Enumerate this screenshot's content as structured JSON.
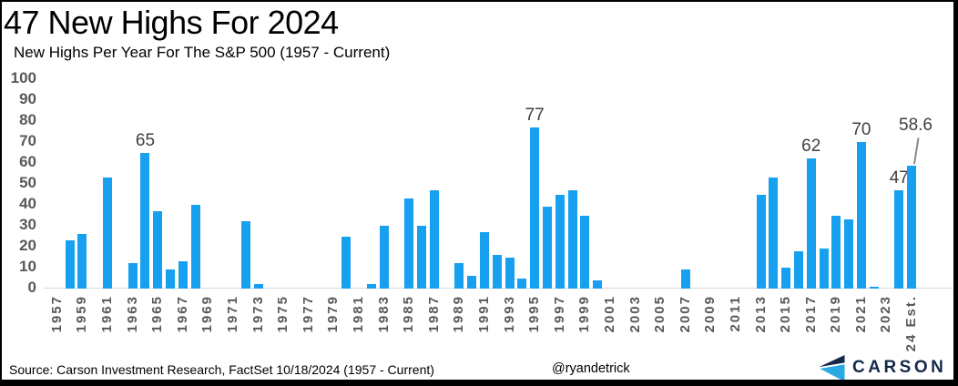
{
  "title": "47 New Highs For 2024",
  "subtitle": "New Highs Per Year For The S&P 500 (1957 - Current)",
  "footer": {
    "source": "Source: Carson Investment Research, FactSet 10/18/2024 (1957 - Current)",
    "handle": "@ryandetrick",
    "brand": "CARSON"
  },
  "colors": {
    "bar": "#18a0f0",
    "axis_text": "#595959",
    "value_label": "#404040",
    "brand_navy": "#13294b",
    "brand_blue": "#2aaae2",
    "baseline": "#d9d9d9"
  },
  "chart_data": {
    "type": "bar",
    "title": "47 New Highs For 2024",
    "subtitle": "New Highs Per Year For The S&P 500 (1957 - Current)",
    "xlabel": "",
    "ylabel": "",
    "ylim": [
      0,
      100
    ],
    "ytick_interval": 10,
    "grid": false,
    "legend": "none",
    "categories": [
      "1957",
      "1958",
      "1959",
      "1960",
      "1961",
      "1962",
      "1963",
      "1964",
      "1965",
      "1966",
      "1967",
      "1968",
      "1969",
      "1970",
      "1971",
      "1972",
      "1973",
      "1974",
      "1975",
      "1976",
      "1977",
      "1978",
      "1979",
      "1980",
      "1981",
      "1982",
      "1983",
      "1984",
      "1985",
      "1986",
      "1987",
      "1988",
      "1989",
      "1990",
      "1991",
      "1992",
      "1993",
      "1994",
      "1995",
      "1996",
      "1997",
      "1998",
      "1999",
      "2000",
      "2001",
      "2002",
      "2003",
      "2004",
      "2005",
      "2006",
      "2007",
      "2008",
      "2009",
      "2010",
      "2011",
      "2012",
      "2013",
      "2014",
      "2015",
      "2016",
      "2017",
      "2018",
      "2019",
      "2020",
      "2021",
      "2022",
      "2023",
      "2024",
      "24 Est."
    ],
    "values": [
      0,
      23,
      26,
      0,
      53,
      0,
      12,
      65,
      37,
      9,
      13,
      40,
      0,
      0,
      0,
      32,
      2,
      0,
      0,
      0,
      0,
      0,
      0,
      25,
      0,
      2,
      30,
      0,
      43,
      30,
      47,
      0,
      12,
      6,
      27,
      16,
      15,
      5,
      77,
      39,
      45,
      47,
      35,
      4,
      0,
      0,
      0,
      0,
      0,
      0,
      9,
      0,
      0,
      0,
      0,
      0,
      45,
      53,
      10,
      18,
      62,
      19,
      35,
      33,
      70,
      1,
      0,
      47,
      58.6
    ],
    "bar_labels": {
      "1964": "65",
      "1995": "77",
      "2017": "62",
      "2021": "70",
      "2024": "47",
      "24 Est.": "58.6"
    },
    "x_tick_rule": "every other category starting at 1957, plus 24 Est."
  }
}
